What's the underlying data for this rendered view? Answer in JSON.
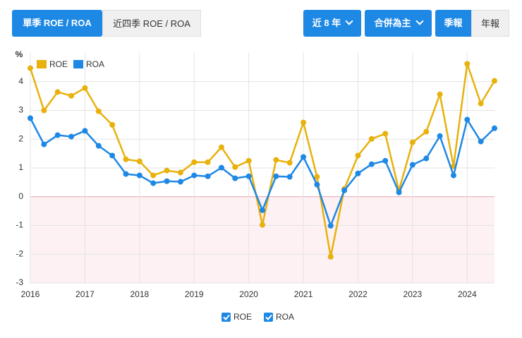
{
  "tabs": [
    "單季 ROE / ROA",
    "近四季 ROE / ROA"
  ],
  "filters": [
    "近 8 年",
    "合併為主"
  ],
  "periods": [
    "季報",
    "年報"
  ],
  "chart_data": {
    "type": "line",
    "y_unit": "%",
    "x": [
      2016,
      2016.25,
      2016.5,
      2016.75,
      2017,
      2017.25,
      2017.5,
      2017.75,
      2018,
      2018.25,
      2018.5,
      2018.75,
      2019,
      2019.25,
      2019.5,
      2019.75,
      2020,
      2020.25,
      2020.5,
      2020.75,
      2021,
      2021.25,
      2021.5,
      2021.75,
      2022,
      2022.25,
      2022.5,
      2022.75,
      2023,
      2023.25,
      2023.5,
      2023.75,
      2024,
      2024.25,
      2024.5
    ],
    "series": [
      {
        "name": "ROE",
        "color": "#e8b10c",
        "values": [
          4.47,
          3.0,
          3.64,
          3.51,
          3.78,
          2.97,
          2.5,
          1.3,
          1.23,
          0.74,
          0.91,
          0.84,
          1.2,
          1.2,
          1.72,
          1.03,
          1.25,
          -0.98,
          1.28,
          1.18,
          2.58,
          0.69,
          -2.09,
          0.27,
          1.43,
          2.01,
          2.19,
          0.22,
          1.89,
          2.26,
          3.56,
          1.06,
          4.62,
          3.24,
          4.03
        ]
      },
      {
        "name": "ROA",
        "color": "#1e88e5",
        "values": [
          2.73,
          1.82,
          2.14,
          2.09,
          2.29,
          1.77,
          1.43,
          0.79,
          0.74,
          0.47,
          0.54,
          0.52,
          0.74,
          0.71,
          1.01,
          0.64,
          0.71,
          -0.47,
          0.71,
          0.69,
          1.38,
          0.42,
          -1.01,
          0.22,
          0.81,
          1.13,
          1.25,
          0.15,
          1.11,
          1.33,
          2.11,
          0.74,
          2.68,
          1.92,
          2.38
        ]
      }
    ],
    "xlim": [
      2016,
      2024.5
    ],
    "xticks": [
      2016,
      2017,
      2018,
      2019,
      2020,
      2021,
      2022,
      2023,
      2024
    ],
    "ylim": [
      -3,
      5
    ],
    "yticks": [
      -3,
      -2,
      -1,
      0,
      1,
      2,
      3,
      4
    ],
    "grid": true
  }
}
